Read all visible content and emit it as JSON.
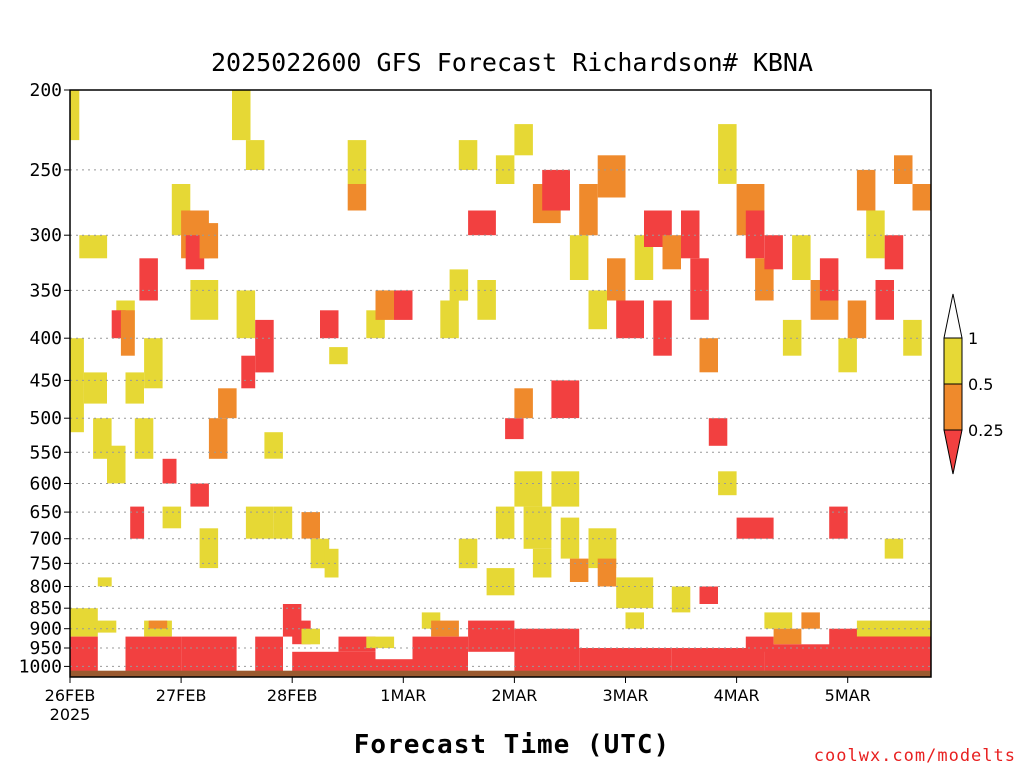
{
  "title": "2025022600 GFS Forecast Richardson# KBNA",
  "xlabel": "Forecast Time (UTC)",
  "credit": "coolwx.com/modelts",
  "colors": {
    "below_025": "#f24040",
    "r025_05": "#ef8a2c",
    "r05_1": "#e6d835",
    "ground": "#9a5a30",
    "grid": "#999999"
  },
  "chart_data": {
    "type": "heatmap",
    "title": "2025022600 GFS Forecast Richardson# KBNA",
    "xlabel": "Forecast Time (UTC)",
    "ylabel": "",
    "y_scale": "log-pressure",
    "ylim": [
      1030,
      200
    ],
    "x_ticks": [
      {
        "label": "26FEB",
        "sublabel": "2025",
        "hour": 0
      },
      {
        "label": "27FEB",
        "hour": 24
      },
      {
        "label": "28FEB",
        "hour": 48
      },
      {
        "label": "1MAR",
        "hour": 72
      },
      {
        "label": "2MAR",
        "hour": 96
      },
      {
        "label": "3MAR",
        "hour": 120
      },
      {
        "label": "4MAR",
        "hour": 144
      },
      {
        "label": "5MAR",
        "hour": 168
      }
    ],
    "x_max_hour": 186,
    "y_ticks": [
      200,
      250,
      300,
      350,
      400,
      450,
      500,
      550,
      600,
      650,
      700,
      750,
      800,
      850,
      900,
      950,
      1000
    ],
    "legend": {
      "position": "right",
      "labels": [
        "1",
        "0.5",
        "0.25"
      ],
      "categories": [
        "<0.25",
        "0.25-0.5",
        "0.5-1"
      ]
    },
    "cells": [
      [
        0,
        6,
        920,
        1030,
        "<0.25"
      ],
      [
        0,
        6,
        850,
        920,
        "0.5-1"
      ],
      [
        0,
        3,
        400,
        520,
        "0.5-1"
      ],
      [
        0,
        2,
        200,
        230,
        "0.5-1"
      ],
      [
        4,
        10,
        880,
        910,
        "0.5-1"
      ],
      [
        2,
        8,
        300,
        320,
        "0.5-1"
      ],
      [
        3,
        8,
        440,
        480,
        "0.5-1"
      ],
      [
        5,
        9,
        500,
        560,
        "0.5-1"
      ],
      [
        8,
        12,
        540,
        600,
        "0.5-1"
      ],
      [
        6,
        9,
        780,
        800,
        "0.5-1"
      ],
      [
        10,
        14,
        360,
        400,
        "0.5-1"
      ],
      [
        9,
        12,
        370,
        400,
        "<0.25"
      ],
      [
        11,
        14,
        370,
        420,
        "0.25-0.5"
      ],
      [
        12,
        16,
        440,
        480,
        "0.5-1"
      ],
      [
        13,
        16,
        640,
        700,
        "<0.25"
      ],
      [
        14,
        18,
        500,
        560,
        "0.5-1"
      ],
      [
        15,
        19,
        320,
        360,
        "<0.25"
      ],
      [
        16,
        20,
        400,
        460,
        "0.5-1"
      ],
      [
        12,
        24,
        920,
        1030,
        "<0.25"
      ],
      [
        16,
        22,
        880,
        920,
        "0.5-1"
      ],
      [
        17,
        21,
        880,
        900,
        "0.25-0.5"
      ],
      [
        20,
        24,
        640,
        680,
        "0.5-1"
      ],
      [
        20,
        23,
        560,
        600,
        "<0.25"
      ],
      [
        22,
        26,
        260,
        300,
        "0.5-1"
      ],
      [
        24,
        30,
        280,
        320,
        "0.25-0.5"
      ],
      [
        25,
        29,
        300,
        330,
        "<0.25"
      ],
      [
        28,
        32,
        290,
        320,
        "0.25-0.5"
      ],
      [
        26,
        32,
        340,
        380,
        "0.5-1"
      ],
      [
        24,
        36,
        920,
        1030,
        "<0.25"
      ],
      [
        26,
        30,
        600,
        640,
        "<0.25"
      ],
      [
        28,
        32,
        680,
        760,
        "0.5-1"
      ],
      [
        30,
        34,
        500,
        560,
        "0.25-0.5"
      ],
      [
        32,
        36,
        460,
        500,
        "0.25-0.5"
      ],
      [
        35,
        39,
        200,
        230,
        "0.5-1"
      ],
      [
        36,
        40,
        350,
        400,
        "0.5-1"
      ],
      [
        37,
        40,
        420,
        460,
        "<0.25"
      ],
      [
        38,
        44,
        640,
        700,
        "0.5-1"
      ],
      [
        38,
        42,
        230,
        250,
        "0.5-1"
      ],
      [
        40,
        44,
        380,
        440,
        "<0.25"
      ],
      [
        44,
        48,
        640,
        700,
        "0.5-1"
      ],
      [
        42,
        46,
        520,
        560,
        "0.5-1"
      ],
      [
        40,
        46,
        920,
        1030,
        "<0.25"
      ],
      [
        46,
        50,
        840,
        920,
        "<0.25"
      ],
      [
        48,
        52,
        880,
        940,
        "<0.25"
      ],
      [
        50,
        54,
        900,
        940,
        "0.5-1"
      ],
      [
        50,
        54,
        650,
        700,
        "0.25-0.5"
      ],
      [
        52,
        56,
        700,
        760,
        "0.5-1"
      ],
      [
        55,
        58,
        720,
        780,
        "0.5-1"
      ],
      [
        54,
        58,
        370,
        400,
        "<0.25"
      ],
      [
        56,
        60,
        410,
        430,
        "0.5-1"
      ],
      [
        60,
        64,
        230,
        260,
        "0.5-1"
      ],
      [
        60,
        64,
        260,
        280,
        "0.25-0.5"
      ],
      [
        64,
        68,
        370,
        400,
        "0.5-1"
      ],
      [
        66,
        70,
        350,
        380,
        "0.25-0.5"
      ],
      [
        70,
        74,
        350,
        380,
        "<0.25"
      ],
      [
        48,
        66,
        960,
        1030,
        "<0.25"
      ],
      [
        58,
        66,
        920,
        960,
        "<0.25"
      ],
      [
        64,
        70,
        920,
        950,
        "0.5-1"
      ],
      [
        66,
        74,
        980,
        1030,
        "<0.25"
      ],
      [
        74,
        86,
        920,
        1030,
        "<0.25"
      ],
      [
        76,
        80,
        860,
        900,
        "0.5-1"
      ],
      [
        78,
        84,
        880,
        920,
        "0.25-0.5"
      ],
      [
        80,
        84,
        360,
        400,
        "0.5-1"
      ],
      [
        82,
        86,
        330,
        360,
        "0.5-1"
      ],
      [
        84,
        88,
        230,
        250,
        "0.5-1"
      ],
      [
        84,
        88,
        700,
        760,
        "0.5-1"
      ],
      [
        86,
        92,
        280,
        300,
        "<0.25"
      ],
      [
        88,
        92,
        340,
        380,
        "0.5-1"
      ],
      [
        86,
        96,
        880,
        960,
        "<0.25"
      ],
      [
        90,
        96,
        760,
        820,
        "0.5-1"
      ],
      [
        92,
        96,
        640,
        700,
        "0.5-1"
      ],
      [
        92,
        96,
        240,
        260,
        "0.5-1"
      ],
      [
        94,
        98,
        500,
        530,
        "<0.25"
      ],
      [
        96,
        100,
        220,
        240,
        "0.5-1"
      ],
      [
        96,
        100,
        460,
        500,
        "0.25-0.5"
      ],
      [
        96,
        102,
        580,
        640,
        "0.5-1"
      ],
      [
        98,
        104,
        640,
        720,
        "0.5-1"
      ],
      [
        100,
        104,
        720,
        780,
        "0.5-1"
      ],
      [
        100,
        106,
        260,
        290,
        "0.25-0.5"
      ],
      [
        102,
        108,
        250,
        280,
        "<0.25"
      ],
      [
        104,
        110,
        450,
        500,
        "<0.25"
      ],
      [
        104,
        110,
        580,
        640,
        "0.5-1"
      ],
      [
        106,
        110,
        660,
        740,
        "0.5-1"
      ],
      [
        96,
        110,
        900,
        1030,
        "<0.25"
      ],
      [
        108,
        112,
        300,
        340,
        "0.5-1"
      ],
      [
        108,
        112,
        740,
        790,
        "0.25-0.5"
      ],
      [
        110,
        114,
        260,
        300,
        "0.25-0.5"
      ],
      [
        112,
        116,
        350,
        390,
        "0.5-1"
      ],
      [
        112,
        118,
        680,
        760,
        "0.5-1"
      ],
      [
        114,
        118,
        740,
        800,
        "0.25-0.5"
      ],
      [
        114,
        120,
        240,
        270,
        "0.25-0.5"
      ],
      [
        116,
        120,
        320,
        360,
        "0.25-0.5"
      ],
      [
        118,
        124,
        360,
        400,
        "<0.25"
      ],
      [
        118,
        126,
        780,
        850,
        "0.5-1"
      ],
      [
        120,
        124,
        860,
        900,
        "0.5-1"
      ],
      [
        110,
        130,
        950,
        1030,
        "<0.25"
      ],
      [
        122,
        126,
        300,
        340,
        "0.5-1"
      ],
      [
        124,
        130,
        280,
        310,
        "<0.25"
      ],
      [
        126,
        130,
        360,
        420,
        "<0.25"
      ],
      [
        128,
        132,
        300,
        330,
        "0.25-0.5"
      ],
      [
        130,
        134,
        800,
        860,
        "0.5-1"
      ],
      [
        132,
        136,
        280,
        320,
        "<0.25"
      ],
      [
        134,
        138,
        320,
        380,
        "<0.25"
      ],
      [
        136,
        140,
        400,
        440,
        "0.25-0.5"
      ],
      [
        138,
        142,
        500,
        540,
        "<0.25"
      ],
      [
        136,
        140,
        800,
        840,
        "<0.25"
      ],
      [
        140,
        144,
        580,
        620,
        "0.5-1"
      ],
      [
        140,
        144,
        220,
        260,
        "0.5-1"
      ],
      [
        144,
        150,
        260,
        300,
        "0.25-0.5"
      ],
      [
        146,
        150,
        280,
        320,
        "<0.25"
      ],
      [
        148,
        152,
        320,
        360,
        "0.25-0.5"
      ],
      [
        150,
        154,
        300,
        330,
        "<0.25"
      ],
      [
        144,
        152,
        660,
        700,
        "<0.25"
      ],
      [
        130,
        150,
        950,
        1030,
        "<0.25"
      ],
      [
        146,
        152,
        920,
        960,
        "<0.25"
      ],
      [
        150,
        156,
        860,
        900,
        "0.5-1"
      ],
      [
        152,
        158,
        900,
        940,
        "0.25-0.5"
      ],
      [
        154,
        158,
        380,
        420,
        "0.5-1"
      ],
      [
        156,
        160,
        300,
        340,
        "0.5-1"
      ],
      [
        158,
        162,
        860,
        900,
        "0.25-0.5"
      ],
      [
        150,
        166,
        940,
        1030,
        "<0.25"
      ],
      [
        160,
        166,
        340,
        380,
        "0.25-0.5"
      ],
      [
        162,
        166,
        320,
        360,
        "<0.25"
      ],
      [
        164,
        168,
        640,
        700,
        "<0.25"
      ],
      [
        166,
        170,
        400,
        440,
        "0.5-1"
      ],
      [
        168,
        172,
        360,
        400,
        "0.25-0.5"
      ],
      [
        170,
        174,
        250,
        280,
        "0.25-0.5"
      ],
      [
        172,
        176,
        280,
        320,
        "0.5-1"
      ],
      [
        174,
        178,
        340,
        380,
        "<0.25"
      ],
      [
        176,
        180,
        300,
        330,
        "<0.25"
      ],
      [
        176,
        180,
        700,
        740,
        "0.5-1"
      ],
      [
        178,
        182,
        240,
        260,
        "0.25-0.5"
      ],
      [
        180,
        184,
        380,
        420,
        "0.5-1"
      ],
      [
        182,
        186,
        260,
        280,
        "0.25-0.5"
      ],
      [
        164,
        186,
        900,
        1030,
        "<0.25"
      ],
      [
        170,
        186,
        880,
        920,
        "0.5-1"
      ]
    ]
  },
  "legend": {
    "label_top": "1",
    "label_mid": "0.5",
    "label_low": "0.25"
  }
}
